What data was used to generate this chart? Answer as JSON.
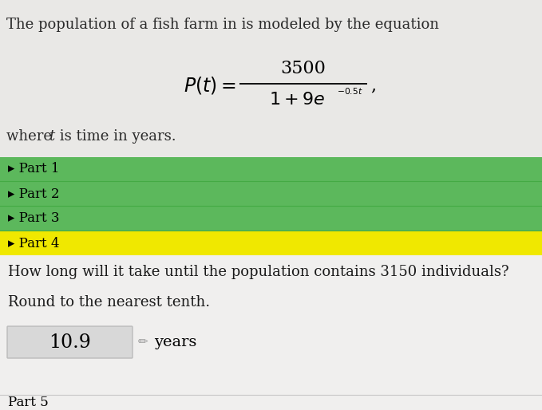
{
  "bg_color": "#f0efee",
  "top_bg_color": "#e8e7e5",
  "title_text": "The population of a fish farm in is modeled by the equation",
  "parts": [
    "Part 1",
    "Part 2",
    "Part 3"
  ],
  "part4": "Part 4",
  "green_color": "#5cb85c",
  "yellow_color": "#f0e800",
  "question_line1": "How long will it take until the population contains 3150 individuals?",
  "question_line2": "Round to the nearest tenth.",
  "answer_value": "10.9",
  "answer_unit": "years",
  "answer_box_color": "#d8d8d8",
  "answer_box_border": "#bbbbbb",
  "part5_text": "Part 5",
  "part5_bg": "#f0efee",
  "white_section_bg": "#f0efee",
  "font_size_title": 13,
  "font_size_parts": 12,
  "font_size_question": 13,
  "font_size_answer": 15,
  "separator_color": "#c8c8c8",
  "green_separator": "#44aa44"
}
